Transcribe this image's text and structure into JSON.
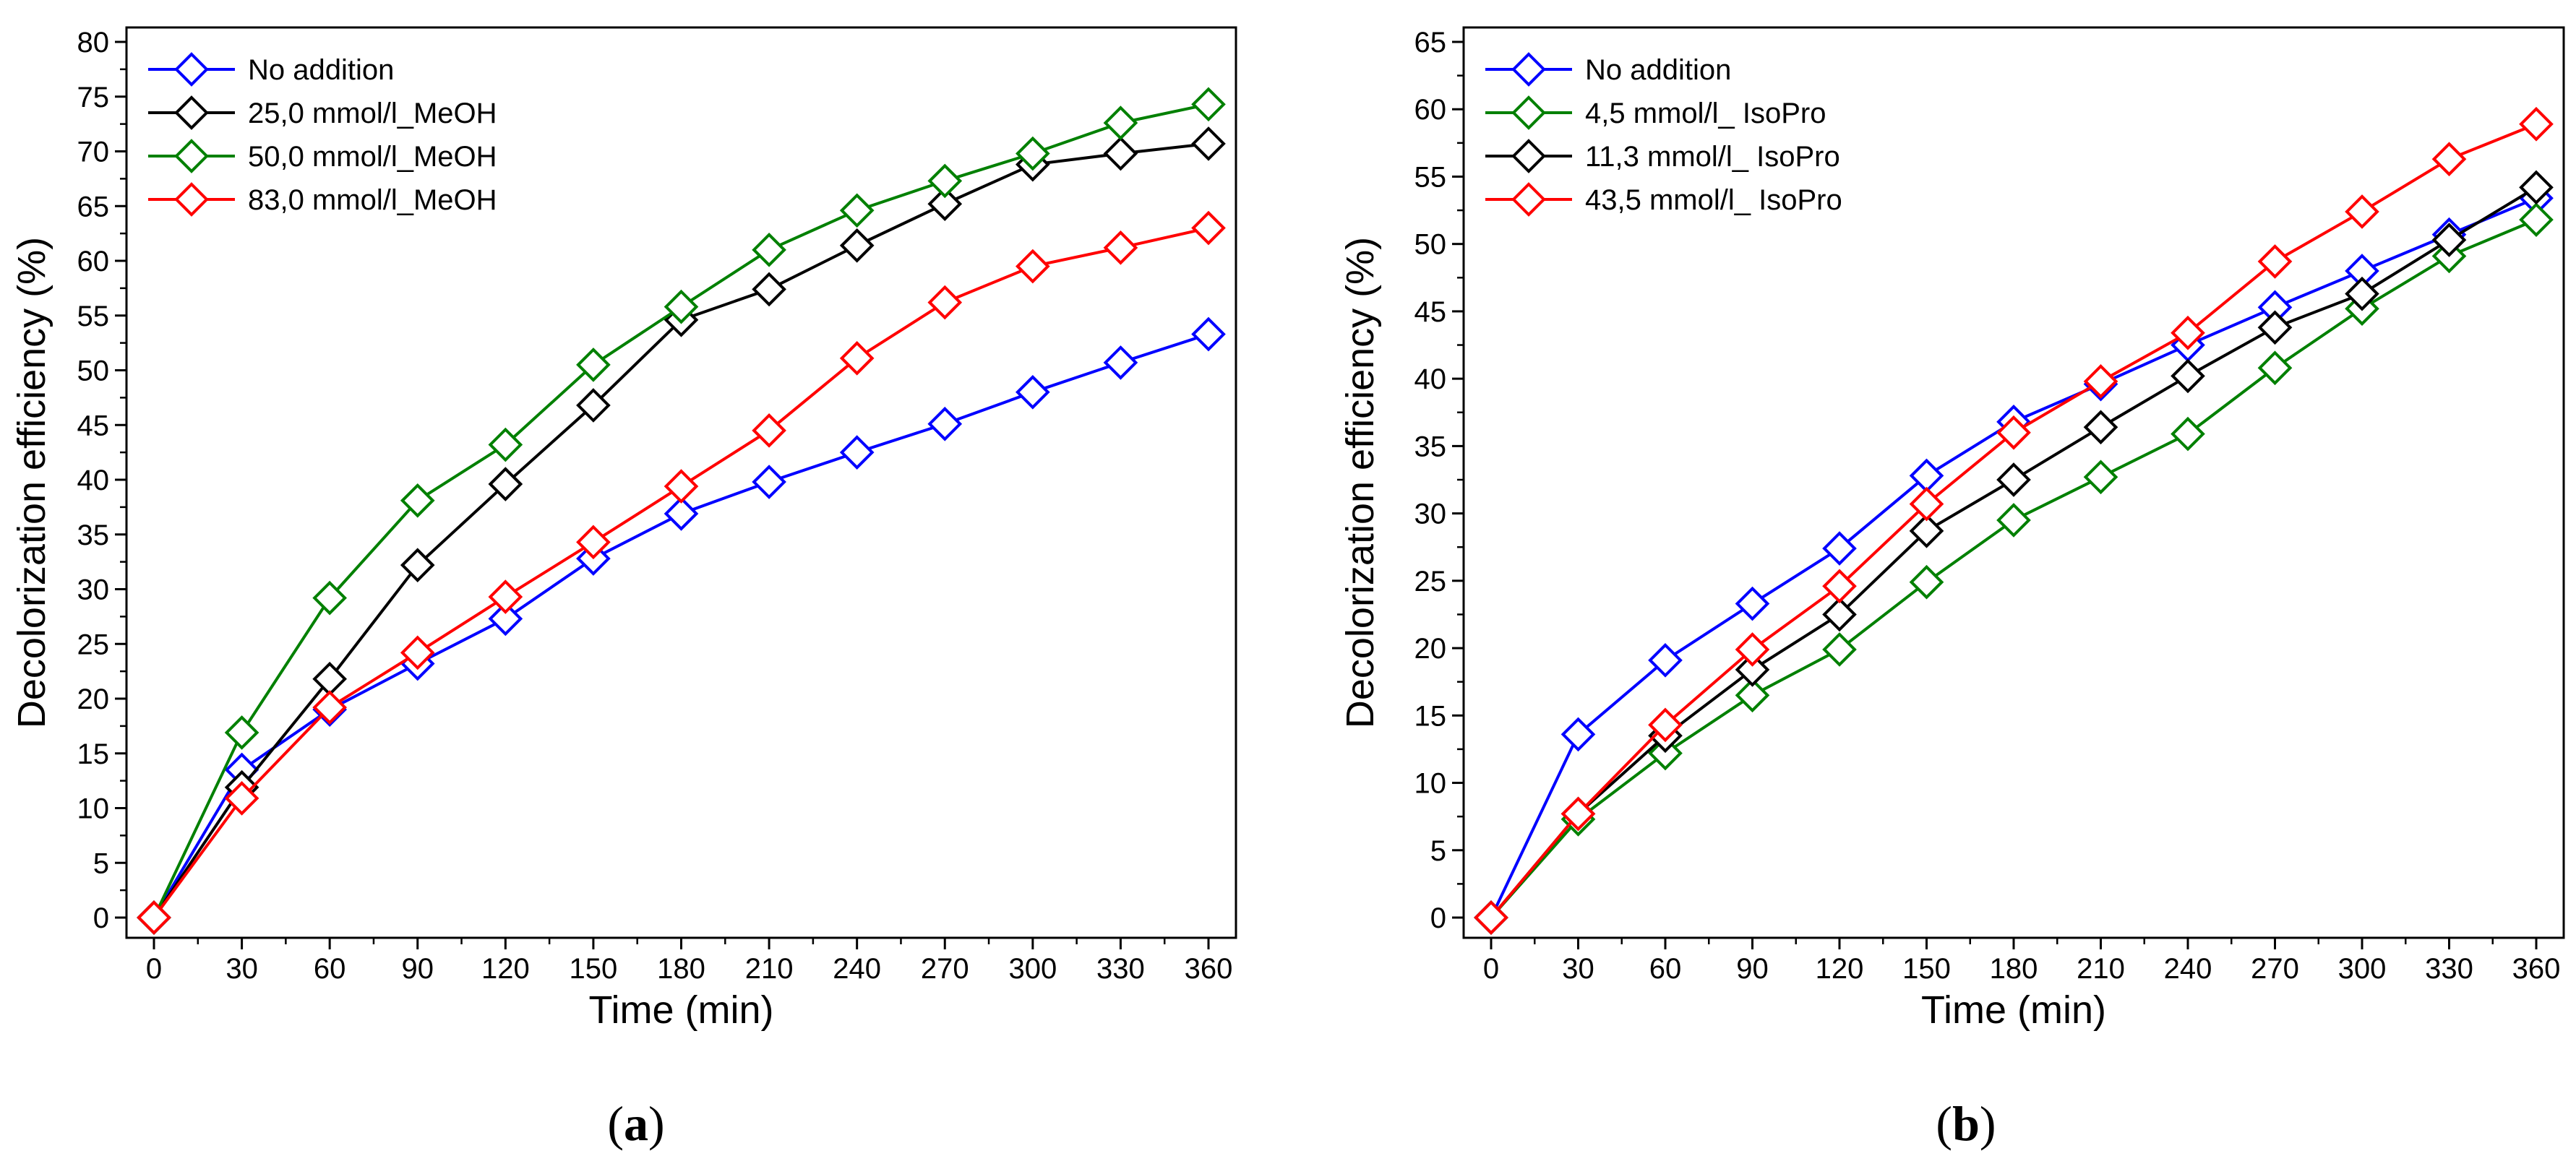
{
  "chart_data": [
    {
      "type": "line",
      "panel_label": "a",
      "xlabel": "Time (min)",
      "ylabel": "Decolorization efficiency (%)",
      "xlim": [
        0,
        360
      ],
      "ylim": [
        0,
        80
      ],
      "x_ticks": [
        0,
        30,
        60,
        90,
        120,
        150,
        180,
        210,
        240,
        270,
        300,
        330,
        360
      ],
      "y_ticks": [
        0,
        5,
        10,
        15,
        20,
        25,
        30,
        35,
        40,
        45,
        50,
        55,
        60,
        65,
        70,
        75,
        80
      ],
      "grid": false,
      "legend_position": "top-left",
      "marker": "diamond-open",
      "x": [
        0,
        30,
        60,
        90,
        120,
        150,
        180,
        210,
        240,
        270,
        300,
        330,
        360
      ],
      "series": [
        {
          "name": "No addition",
          "color": "#0000ff",
          "values": [
            0,
            13.5,
            19.0,
            23.2,
            27.3,
            32.8,
            36.9,
            39.8,
            42.5,
            45.1,
            48.0,
            50.7,
            53.3
          ]
        },
        {
          "name": "25,0 mmol/l_MeOH",
          "color": "#000000",
          "values": [
            0,
            11.9,
            21.8,
            32.2,
            39.6,
            46.8,
            54.6,
            57.4,
            61.4,
            65.2,
            68.8,
            69.8,
            70.7
          ]
        },
        {
          "name": "50,0 mmol/l_MeOH",
          "color": "#008000",
          "values": [
            0,
            16.9,
            29.2,
            38.1,
            43.2,
            50.5,
            55.8,
            61.0,
            64.6,
            67.3,
            69.8,
            72.6,
            74.3
          ]
        },
        {
          "name": "83,0 mmol/l_MeOH",
          "color": "#ff0000",
          "values": [
            0,
            10.9,
            19.2,
            24.2,
            29.3,
            34.3,
            39.4,
            44.5,
            51.1,
            56.2,
            59.5,
            61.2,
            63.0
          ]
        }
      ]
    },
    {
      "type": "line",
      "panel_label": "b",
      "xlabel": "Time (min)",
      "ylabel": "Decolorization efficiency (%)",
      "xlim": [
        0,
        360
      ],
      "ylim": [
        0,
        65
      ],
      "x_ticks": [
        0,
        30,
        60,
        90,
        120,
        150,
        180,
        210,
        240,
        270,
        300,
        330,
        360
      ],
      "y_ticks": [
        0,
        5,
        10,
        15,
        20,
        25,
        30,
        35,
        40,
        45,
        50,
        55,
        60,
        65
      ],
      "grid": false,
      "legend_position": "top-left",
      "marker": "diamond-open",
      "x": [
        0,
        30,
        60,
        90,
        120,
        150,
        180,
        210,
        240,
        270,
        300,
        330,
        360
      ],
      "series": [
        {
          "name": "No addition",
          "color": "#0000ff",
          "values": [
            0,
            13.6,
            19.1,
            23.3,
            27.4,
            32.8,
            36.8,
            39.6,
            42.5,
            45.3,
            48.0,
            50.7,
            53.4
          ]
        },
        {
          "name": "4,5 mmol/l_ IsoPro",
          "color": "#008000",
          "values": [
            0,
            7.3,
            12.2,
            16.5,
            19.9,
            24.9,
            29.5,
            32.7,
            35.9,
            40.8,
            45.2,
            49.1,
            51.8
          ]
        },
        {
          "name": "11,3 mmol/l_ IsoPro",
          "color": "#000000",
          "values": [
            0,
            7.7,
            13.5,
            18.4,
            22.5,
            28.7,
            32.5,
            36.4,
            40.2,
            43.8,
            46.3,
            50.3,
            54.2
          ]
        },
        {
          "name": "43,5 mmol/l_ IsoPro",
          "color": "#ff0000",
          "values": [
            0,
            7.7,
            14.3,
            19.9,
            24.6,
            30.7,
            36.0,
            39.8,
            43.4,
            48.7,
            52.4,
            56.3,
            58.9
          ]
        }
      ]
    }
  ]
}
